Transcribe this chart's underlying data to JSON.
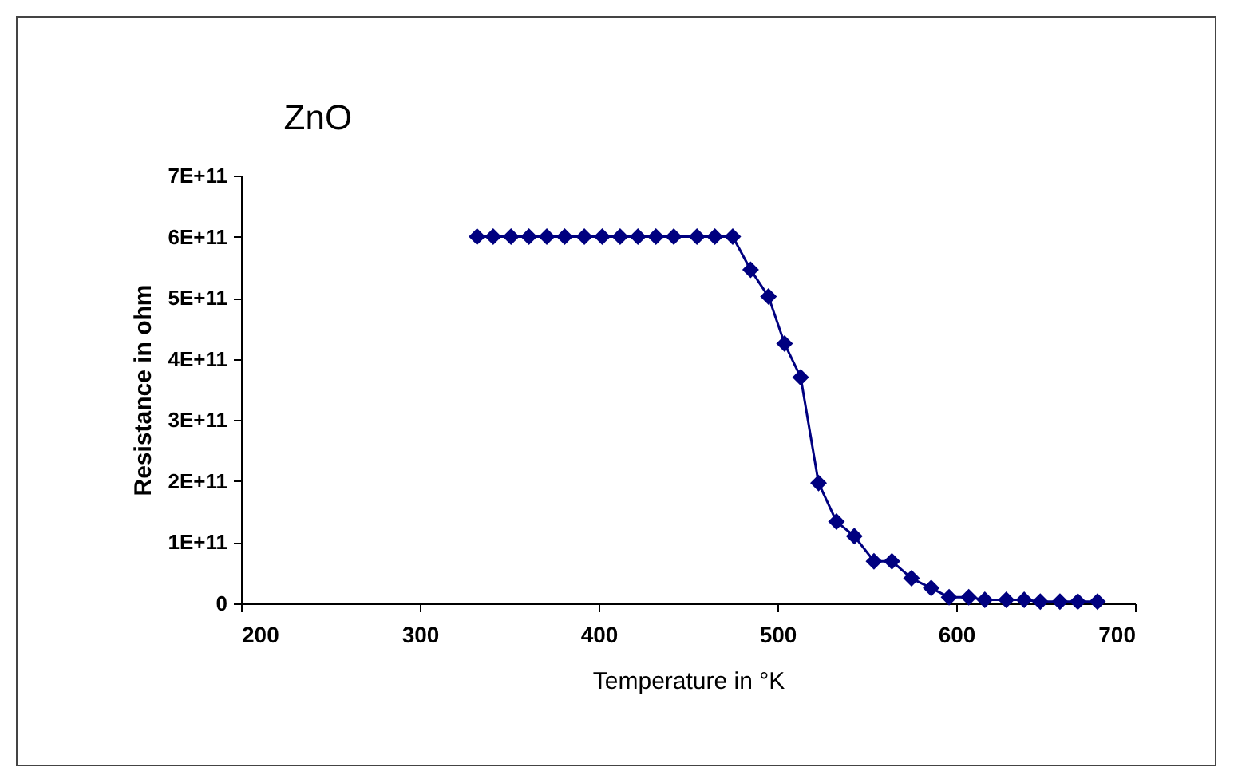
{
  "chart_data": {
    "type": "line",
    "title": "ZnO",
    "xlabel": "Temperature in °K",
    "ylabel": "Resistance in ohm",
    "x": [
      332,
      341,
      351,
      361,
      371,
      381,
      392,
      402,
      412,
      422,
      432,
      442,
      455,
      465,
      475,
      485,
      495,
      504,
      513,
      523,
      533,
      543,
      554,
      564,
      575,
      586,
      596,
      607,
      616,
      628,
      638,
      647,
      658,
      668,
      679
    ],
    "series": [
      {
        "color": "#000080",
        "values": [
          600000000000.0,
          600000000000.0,
          600000000000.0,
          600000000000.0,
          600000000000.0,
          600000000000.0,
          600000000000.0,
          600000000000.0,
          600000000000.0,
          600000000000.0,
          600000000000.0,
          600000000000.0,
          600000000000.0,
          600000000000.0,
          600000000000.0,
          546000000000.0,
          502000000000.0,
          425000000000.0,
          370000000000.0,
          197000000000.0,
          134000000000.0,
          110000000000.0,
          69000000000.0,
          69000000000.0,
          41000000000.0,
          25000000000.0,
          10000000000.0,
          10000000000.0,
          6000000000.0,
          6000000000.0,
          6000000000.0,
          3000000000.0,
          3000000000.0,
          3000000000.0,
          3000000000.0
        ]
      }
    ],
    "xlim": [
      200,
      700
    ],
    "xticks": [
      200,
      300,
      400,
      500,
      600,
      700
    ],
    "ylim": [
      0,
      700000000000.0
    ],
    "yticks": [
      0,
      {
        "value": 100000000000.0,
        "label": "1E+11"
      },
      {
        "value": 200000000000.0,
        "label": "2E+11"
      },
      {
        "value": 300000000000.0,
        "label": "3E+11"
      },
      {
        "value": 400000000000.0,
        "label": "4E+11"
      },
      {
        "value": 500000000000.0,
        "label": "5E+11"
      },
      {
        "value": 600000000000.0,
        "label": "6E+11"
      },
      {
        "value": 700000000000.0,
        "label": "7E+11"
      }
    ],
    "grid": false,
    "legend": false,
    "marker": "diamond",
    "line_style": "solid"
  }
}
